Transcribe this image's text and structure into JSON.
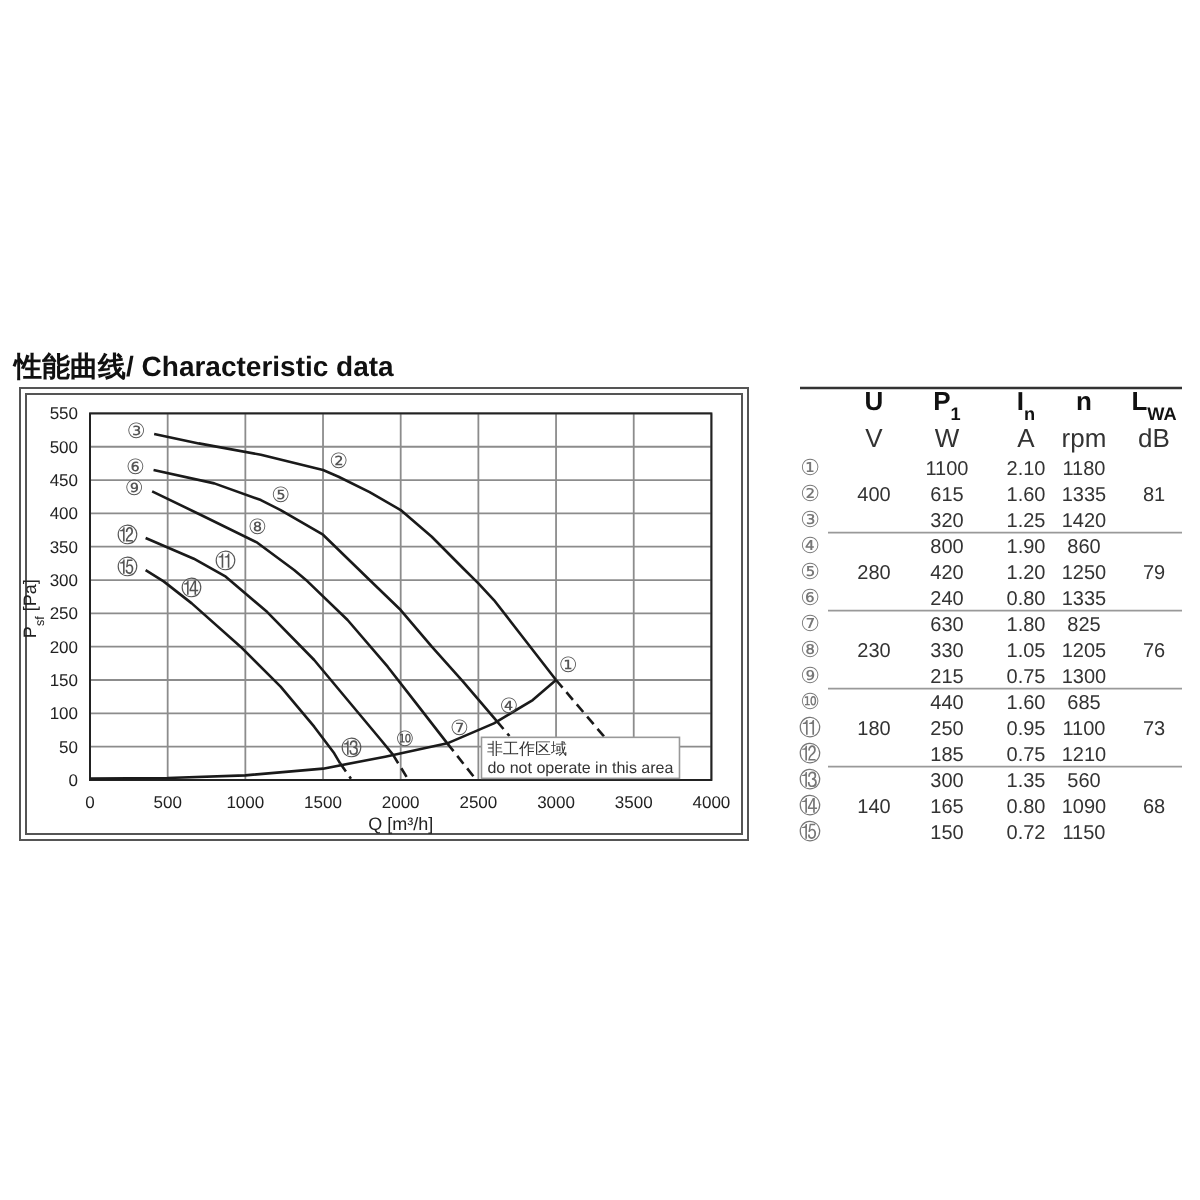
{
  "chart_data": [
    {
      "type": "line",
      "title": "性能曲线/ Characteristic data",
      "xlabel": "Q [m³/h]",
      "ylabel": "P$_{sf}$ [Pa]",
      "xlim": [
        0,
        4000
      ],
      "xticks": [
        0,
        500,
        1000,
        1500,
        2000,
        2500,
        3000,
        3500,
        4000
      ],
      "ylim": [
        0,
        550
      ],
      "yticks": [
        0,
        50,
        100,
        150,
        200,
        250,
        300,
        350,
        400,
        450,
        500,
        550
      ],
      "grid": true,
      "series": [
        {
          "color": "#1a1a1a",
          "x": [
            413,
            700,
            1100,
            1500,
            1600,
            1800,
            2000,
            2200,
            2400,
            2500,
            2600,
            2800,
            3000
          ],
          "values": [
            519,
            505,
            488,
            465,
            455,
            432,
            405,
            365,
            318,
            295,
            270,
            210,
            150
          ]
        },
        {
          "color": "#1a1a1a",
          "x": [
            409,
            800,
            1100,
            1227,
            1500,
            1800,
            2000,
            2200,
            2400,
            2620
          ],
          "values": [
            465,
            445,
            420,
            405,
            368,
            300,
            255,
            200,
            148,
            88
          ]
        },
        {
          "color": "#1a1a1a",
          "x": [
            400,
            711,
            1077,
            1314,
            1400,
            1658,
            1916,
            2100,
            2300
          ],
          "values": [
            433,
            398,
            356,
            315,
            298,
            240,
            170,
            115,
            55
          ]
        },
        {
          "color": "#1a1a1a",
          "x": [
            358,
            668,
            874,
            1141,
            1443,
            1658,
            1873,
            1950
          ],
          "values": [
            363,
            332,
            305,
            252,
            180,
            120,
            60,
            38
          ]
        },
        {
          "color": "#1a1a1a",
          "x": [
            358,
            474,
            655,
            969,
            1227,
            1443,
            1572,
            1610
          ],
          "values": [
            315,
            298,
            265,
            200,
            140,
            80,
            40,
            25
          ]
        },
        {
          "color": "#1a1a1a",
          "x": [
            0,
            500,
            1000,
            1500,
            1900,
            2300,
            2600,
            2850,
            3000
          ],
          "values": [
            2,
            3,
            7,
            17,
            35,
            55,
            85,
            120,
            150
          ]
        },
        {
          "color": "#1a1a1a",
          "line_style": "dashed",
          "x": [
            3000,
            3310
          ],
          "values": [
            150,
            65
          ]
        },
        {
          "color": "#1a1a1a",
          "line_style": "dashed",
          "x": [
            2620,
            2700
          ],
          "values": [
            88,
            66
          ]
        },
        {
          "color": "#1a1a1a",
          "line_style": "dashed",
          "x": [
            2300,
            2480
          ],
          "values": [
            55,
            2
          ]
        },
        {
          "color": "#1a1a1a",
          "line_style": "dashed",
          "x": [
            1950,
            2045
          ],
          "values": [
            38,
            2
          ]
        },
        {
          "color": "#1a1a1a",
          "line_style": "dashed",
          "x": [
            1610,
            1680
          ],
          "values": [
            25,
            2
          ]
        }
      ],
      "annotations": [
        {
          "text": "①",
          "x": 3000,
          "y": 150
        },
        {
          "text": "②",
          "x": 1600,
          "y": 455
        },
        {
          "text": "③",
          "x": 413,
          "y": 519
        },
        {
          "text": "④",
          "x": 2620,
          "y": 88
        },
        {
          "text": "⑤",
          "x": 1227,
          "y": 405
        },
        {
          "text": "⑥",
          "x": 409,
          "y": 465
        },
        {
          "text": "⑦",
          "x": 2300,
          "y": 55
        },
        {
          "text": "⑧",
          "x": 1077,
          "y": 356
        },
        {
          "text": "⑨",
          "x": 400,
          "y": 433
        },
        {
          "text": "⑩",
          "x": 1950,
          "y": 38
        },
        {
          "text": "⑪",
          "x": 874,
          "y": 305
        },
        {
          "text": "⑫",
          "x": 358,
          "y": 363
        },
        {
          "text": "⑬",
          "x": 1610,
          "y": 25
        },
        {
          "text": "⑭",
          "x": 655,
          "y": 265
        },
        {
          "text": "⑮",
          "x": 358,
          "y": 315
        },
        {
          "text": "非工作区域\ndo not operate in this area",
          "x": 2520,
          "y": 64
        }
      ]
    },
    {
      "type": "other",
      "categories": [
        "U\nV",
        "P$_{1}$\nW",
        "I$_{n}$\nA",
        "n\nrpm",
        "L$_{WA}$\ndB"
      ],
      "y_categories": [
        "①",
        "②",
        "③",
        "④",
        "⑤",
        "⑥",
        "⑦",
        "⑧",
        "⑨",
        "⑩",
        "⑪",
        "⑫",
        "⑬",
        "⑭",
        "⑮"
      ],
      "cell_labels": [
        [
          null,
          "1100",
          "2.10",
          "1180",
          null
        ],
        [
          "400",
          "615",
          "1.60",
          "1335",
          "81"
        ],
        [
          null,
          "320",
          "1.25",
          "1420",
          null
        ],
        [
          null,
          "800",
          "1.90",
          "860",
          null
        ],
        [
          "280",
          "420",
          "1.20",
          "1250",
          "79"
        ],
        [
          null,
          "240",
          "0.80",
          "1335",
          null
        ],
        [
          null,
          "630",
          "1.80",
          "825",
          null
        ],
        [
          "230",
          "330",
          "1.05",
          "1205",
          "76"
        ],
        [
          null,
          "215",
          "0.75",
          "1300",
          null
        ],
        [
          null,
          "440",
          "1.60",
          "685",
          null
        ],
        [
          "180",
          "250",
          "0.95",
          "1100",
          "73"
        ],
        [
          null,
          "185",
          "0.75",
          "1210",
          null
        ],
        [
          null,
          "300",
          "1.35",
          "560",
          null
        ],
        [
          "140",
          "165",
          "0.80",
          "1090",
          "68"
        ],
        [
          null,
          "150",
          "0.72",
          "1150",
          null
        ]
      ]
    }
  ]
}
